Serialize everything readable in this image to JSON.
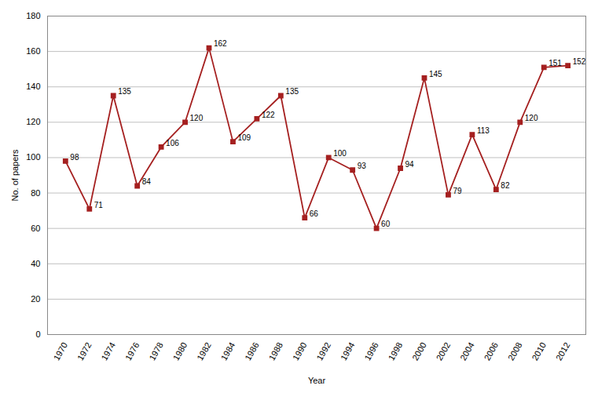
{
  "chart_data": {
    "type": "line",
    "x": [
      1970,
      1972,
      1974,
      1976,
      1978,
      1980,
      1982,
      1984,
      1986,
      1988,
      1990,
      1992,
      1994,
      1996,
      1998,
      2000,
      2002,
      2004,
      2006,
      2008,
      2010,
      2012
    ],
    "values": [
      98,
      71,
      135,
      84,
      106,
      120,
      162,
      109,
      122,
      135,
      66,
      100,
      93,
      60,
      94,
      145,
      79,
      113,
      82,
      120,
      151,
      152
    ],
    "color": "#a52020",
    "marker": "square",
    "xlabel": "Year",
    "ylabel": "No. of papers",
    "xlim": [
      1968.5,
      2013.5
    ],
    "xticks": [
      1970,
      1972,
      1974,
      1976,
      1978,
      1980,
      1982,
      1984,
      1986,
      1988,
      1990,
      1992,
      1994,
      1996,
      1998,
      2000,
      2002,
      2004,
      2006,
      2008,
      2010,
      2012
    ],
    "ylim": [
      0,
      180
    ],
    "yticks": [
      0,
      20,
      40,
      60,
      80,
      100,
      120,
      140,
      160,
      180
    ],
    "grid": true,
    "data_labels": true
  }
}
